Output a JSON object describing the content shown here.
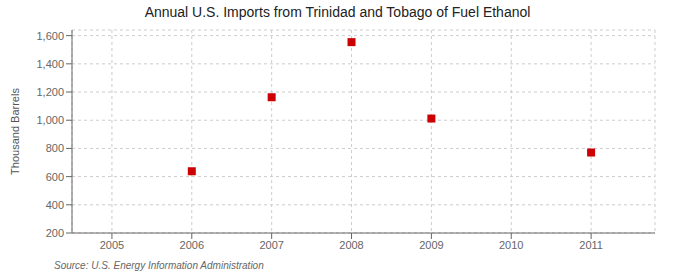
{
  "chart_data": {
    "type": "scatter",
    "title": "Annual U.S. Imports from Trinidad and Tobago of Fuel Ethanol",
    "ylabel": "Thousand Barrels",
    "annotations": [
      "Source: U.S. Energy Information Administration"
    ],
    "x": [
      2005,
      2006,
      2007,
      2008,
      2009,
      2010,
      2011
    ],
    "values": [
      null,
      638,
      1163,
      1554,
      1012,
      null,
      771
    ],
    "color": "#cc0000",
    "marker": "square",
    "xlim": [
      2004.5,
      2011.8
    ],
    "xticks": [
      2005,
      2006,
      2007,
      2008,
      2009,
      2010,
      2011
    ],
    "ylim": [
      200,
      1640
    ],
    "yticks": [
      200,
      400,
      600,
      800,
      {
        "value": 1000,
        "label": "1,000"
      },
      {
        "value": 1200,
        "label": "1,200"
      },
      {
        "value": 1400,
        "label": "1,400"
      },
      {
        "value": 1600,
        "label": "1,600"
      }
    ],
    "grid": true
  }
}
